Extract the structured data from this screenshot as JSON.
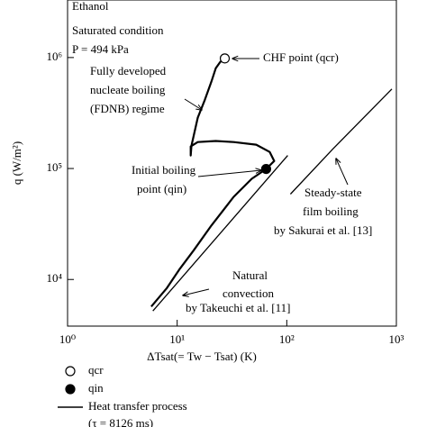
{
  "chart_data": {
    "type": "line",
    "xlabel": "ΔTsat(= Tw − Tsat) (K)",
    "ylabel": "q (W/m²)",
    "log_x": true,
    "log_y": true,
    "xlim": [
      1,
      1000
    ],
    "ylim": [
      3800,
      3300000
    ],
    "xticks": [
      {
        "value": 1,
        "label": "10⁰"
      },
      {
        "value": 10,
        "label": "10¹"
      },
      {
        "value": 100,
        "label": "10²"
      },
      {
        "value": 1000,
        "label": "10³"
      }
    ],
    "yticks": [
      {
        "value": 10000,
        "label": "10⁴"
      },
      {
        "value": 100000,
        "label": "10⁵"
      },
      {
        "value": 1000000,
        "label": "10⁶"
      }
    ],
    "conditions": [
      "Ethanol",
      "Saturated condition",
      "P = 494 kPa"
    ],
    "series": [
      {
        "name": "Heat transfer process",
        "color": "#000000",
        "x": [
          5.8,
          8.0,
          10.6,
          14.1,
          20.5,
          32.8,
          47.9,
          64.8,
          76.8,
          69.9,
          52.6,
          32.8,
          22.5,
          15.4,
          13.3,
          13.3,
          13.5,
          15.4,
          17.9,
          20.5,
          22.5,
          24.7,
          27.2
        ],
        "values": [
          5700,
          8300,
          12500,
          18200,
          30600,
          55600,
          80700,
          99000,
          117000,
          141000,
          164000,
          173000,
          177000,
          173000,
          158000,
          131000,
          160000,
          287000,
          416000,
          604000,
          800000,
          911000,
          982000
        ]
      }
    ],
    "curves": [
      {
        "label": [
          "Natural",
          "convection",
          "by Takeuchi et al. [11]"
        ],
        "color": "#000000",
        "x": [
          6.0,
          102
        ],
        "values": [
          5200,
          131000
        ]
      },
      {
        "label": [
          "Steady-state",
          "film boiling",
          "by Sakurai et al. [13]"
        ],
        "color": "#000000",
        "x": [
          108,
          262,
          910
        ],
        "values": [
          58800,
          149000,
          521000
        ]
      }
    ],
    "points": [
      {
        "name": "qcr",
        "label": "CHF point (qcr)",
        "fill": "#ffffff",
        "x": 27.2,
        "y": 982000
      },
      {
        "name": "qin",
        "label": [
          "Initial boiling",
          "point (qin)"
        ],
        "fill": "#000000",
        "x": 64.8,
        "y": 99000
      }
    ],
    "regime_label": [
      "Fully developed",
      "nucleate boiling",
      "(FDNB) regime"
    ],
    "legend_note": "(τ = 8126 ms)"
  }
}
